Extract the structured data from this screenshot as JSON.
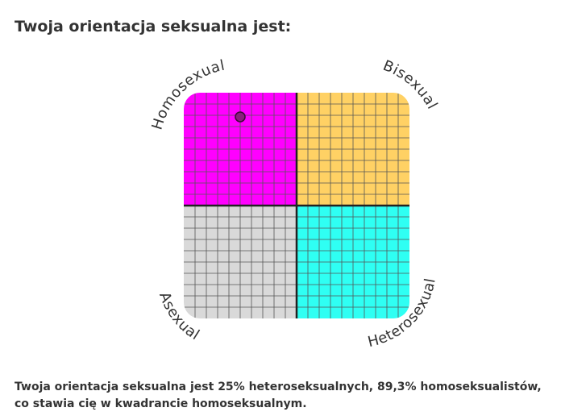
{
  "page": {
    "title": "Twoja orientacja seksualna jest:",
    "result_text": "Twoja orientacja seksualna jest 25% heteroseksualnych, 89,3% homoseksualistów, co stawia cię w kwadrancie homoseksualnym."
  },
  "compass": {
    "labels": {
      "top_left": "Homosexual",
      "top_right": "Bisexual",
      "bottom_left": "Asexual",
      "bottom_right": "Heterosexual"
    },
    "colors": {
      "top_left": "#ff00ff",
      "top_right": "#ffd164",
      "bottom_left": "#d9d9d9",
      "bottom_right": "#2ffff3",
      "grid_line": "#555555",
      "axis_line": "#222222",
      "marker_fill": "#8a1f7c",
      "marker_stroke": "#3b0a36"
    },
    "grid_cells_per_side": 20,
    "marker": {
      "heterosexual_percent": 25,
      "homosexual_percent": 89.3
    }
  }
}
